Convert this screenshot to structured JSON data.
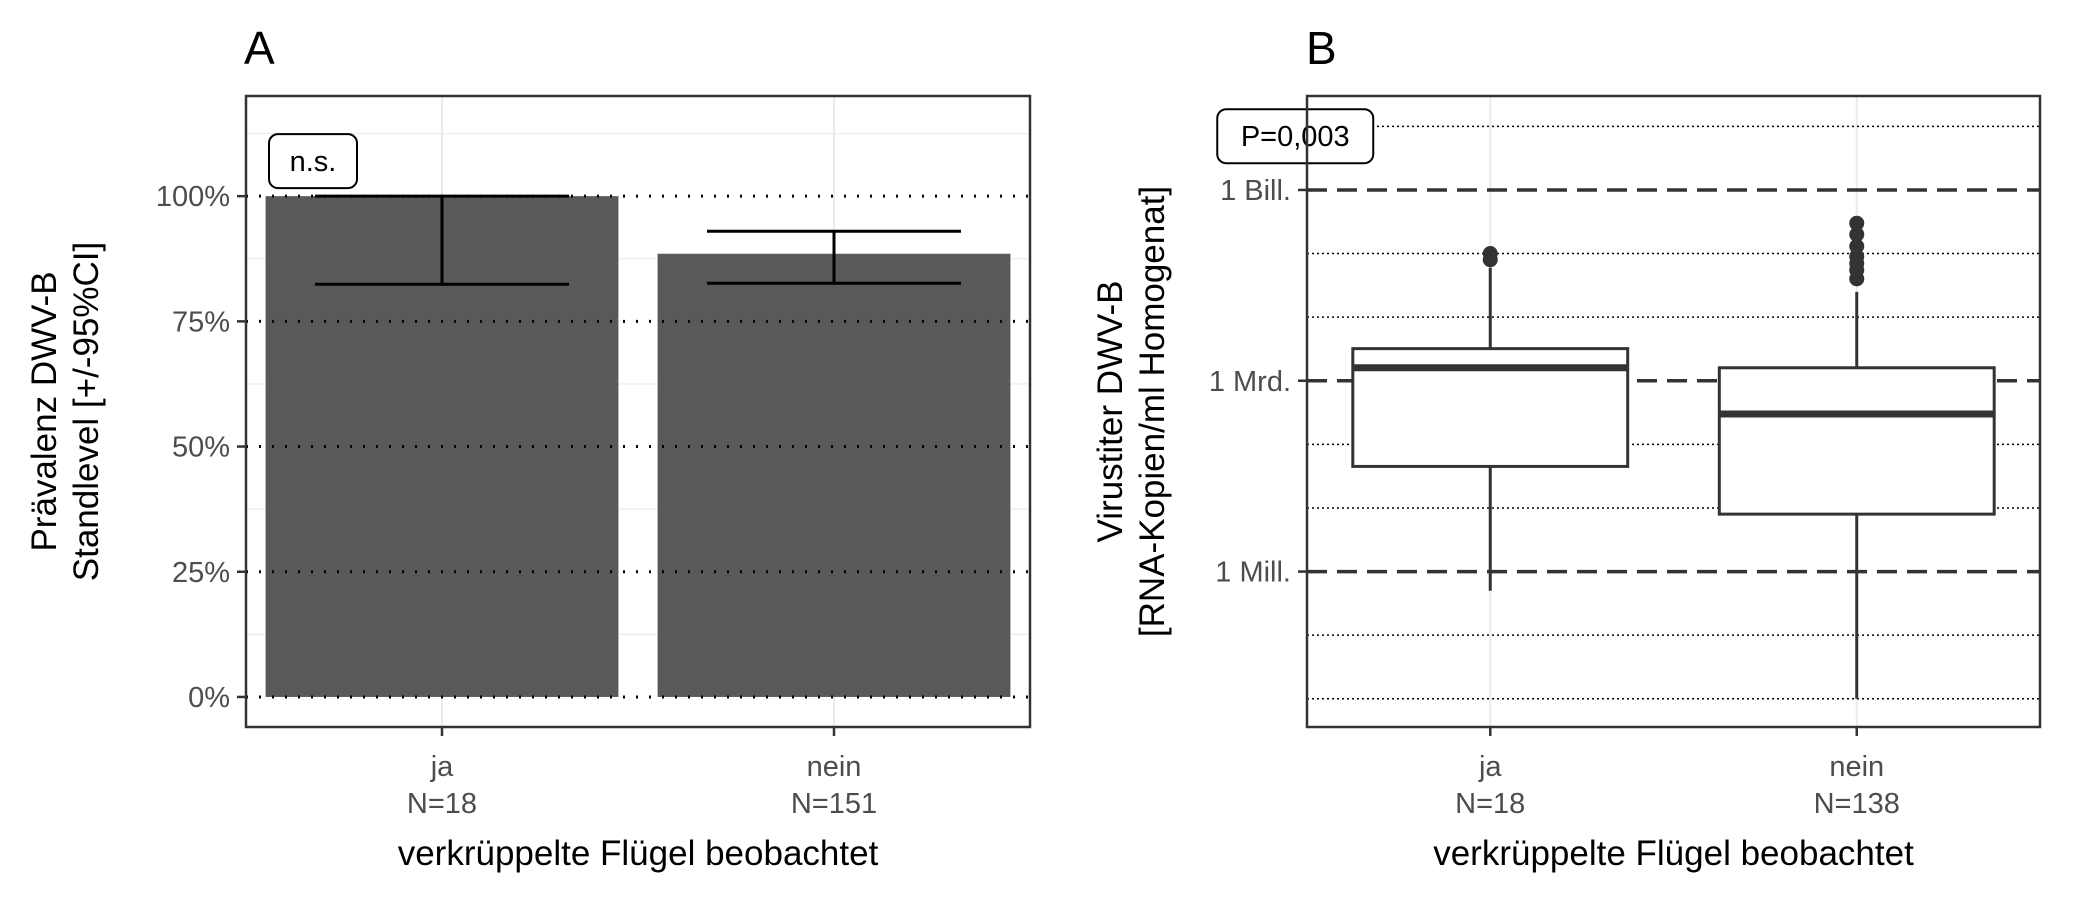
{
  "chart_data": [
    {
      "panel": "A",
      "type": "bar",
      "ylabel_lines": [
        "Prävalenz DWV-B",
        "Standlevel [+/-95%CI]"
      ],
      "xlabel": "verkrüppelte Flügel beobachtet",
      "categories": [
        "ja",
        "nein"
      ],
      "counts": [
        "N=18",
        "N=151"
      ],
      "values": [
        100,
        88.5
      ],
      "ci_lower": [
        82.4,
        82.6
      ],
      "ci_upper": [
        100,
        93.0
      ],
      "ylim": [
        -6,
        120
      ],
      "yticks": [
        0,
        25,
        50,
        75,
        100
      ],
      "ytick_labels": [
        "0%",
        "25%",
        "50%",
        "75%",
        "100%"
      ],
      "annotation": {
        "text": "n.s.",
        "category": "ja",
        "y": 107
      },
      "bar_color": "#595959",
      "grid": true
    },
    {
      "panel": "B",
      "type": "box",
      "ylabel_lines": [
        "Virustiter DWV-B",
        "[RNA-Kopien/ml Homogenat]"
      ],
      "xlabel": "verkrüppelte Flügel beobachtet",
      "yscale": "log10",
      "categories": [
        "ja",
        "nein"
      ],
      "counts": [
        "N=18",
        "N=138"
      ],
      "ylim": [
        3600.0,
        30000000000000.0
      ],
      "yticks": [
        1000000.0,
        1000000000.0,
        1000000000000.0
      ],
      "ytick_labels": [
        "1 Mill.",
        "1 Mrd.",
        "1 Bill."
      ],
      "boxes": [
        {
          "category": "ja",
          "whisker_low": 500000.0,
          "q1": 45000000.0,
          "median": 1600000000.0,
          "q3": 3200000000.0,
          "whisker_high": 60000000000.0,
          "outliers": [
            80000000000.0,
            100000000000.0
          ]
        },
        {
          "category": "nein",
          "whisker_low": 10000.0,
          "q1": 8000000.0,
          "median": 300000000.0,
          "q3": 1600000000.0,
          "whisker_high": 25000000000.0,
          "outliers": [
            40000000000.0,
            55000000000.0,
            70000000000.0,
            90000000000.0,
            130000000000.0,
            200000000000.0,
            300000000000.0
          ]
        }
      ],
      "annotation": {
        "text": "P=0,003",
        "category": "ja",
        "y": 7000000000000.0
      },
      "grid": true
    }
  ]
}
